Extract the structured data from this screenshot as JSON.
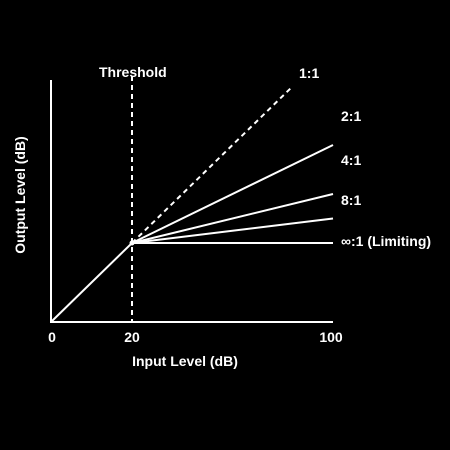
{
  "colors": {
    "background": "#000000",
    "foreground": "#ffffff"
  },
  "chart_data": {
    "type": "line",
    "xlabel": "Input Level (dB)",
    "ylabel": "Output Level (dB)",
    "x_ticks": [
      "0",
      "20",
      "100"
    ],
    "threshold": {
      "label": "Threshold",
      "x": 20
    },
    "unity_segment": {
      "x": [
        0,
        20
      ],
      "y": [
        0,
        20
      ]
    },
    "series": [
      {
        "name": "1:1",
        "ratio": 1,
        "style": "dashed",
        "x": [
          20,
          100
        ],
        "y": [
          20,
          100
        ]
      },
      {
        "name": "2:1",
        "ratio": 2,
        "style": "solid",
        "x": [
          20,
          100
        ],
        "y": [
          20,
          60
        ]
      },
      {
        "name": "4:1",
        "ratio": 4,
        "style": "solid",
        "x": [
          20,
          100
        ],
        "y": [
          20,
          40
        ]
      },
      {
        "name": "8:1",
        "ratio": 8,
        "style": "solid",
        "x": [
          20,
          100
        ],
        "y": [
          20,
          30
        ]
      },
      {
        "name": "∞:1 (Limiting)",
        "ratio": "infinity",
        "style": "solid",
        "x": [
          20,
          100
        ],
        "y": [
          20,
          20
        ]
      }
    ]
  }
}
